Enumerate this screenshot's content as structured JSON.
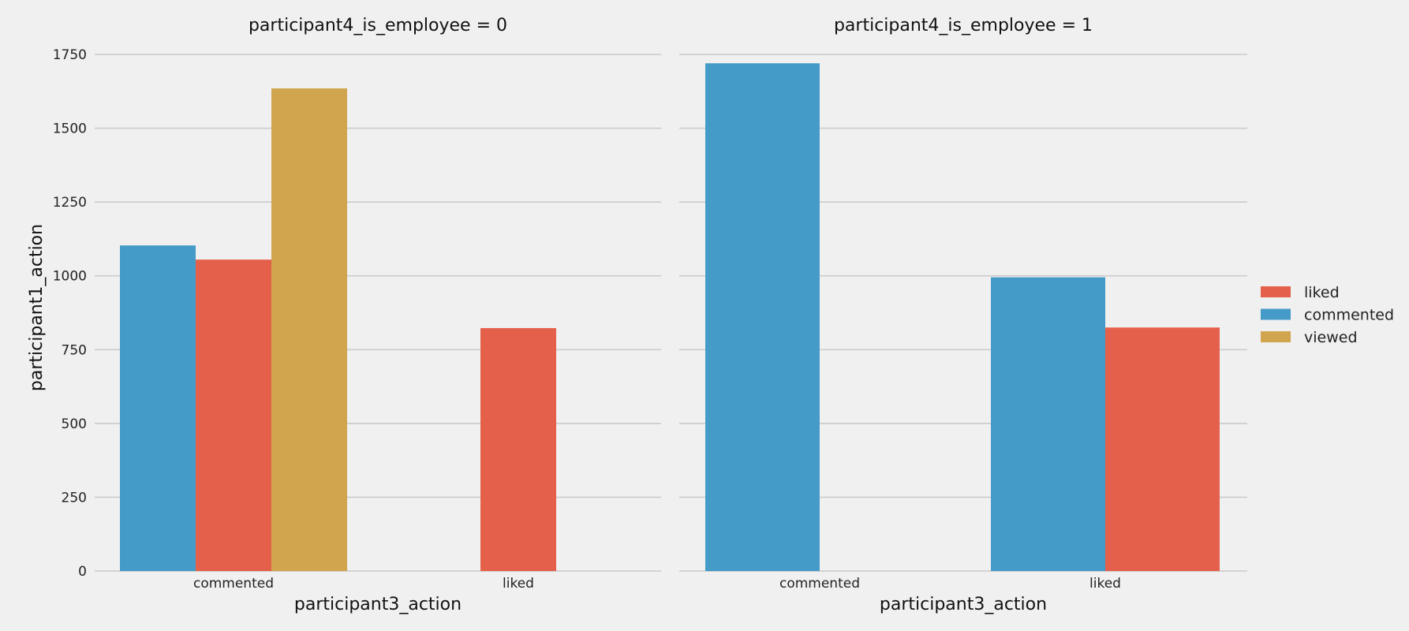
{
  "chart_data": {
    "type": "bar",
    "y_label": "participant1_action",
    "x_label": "participant3_action",
    "y_ticks": [
      0,
      250,
      500,
      750,
      1000,
      1250,
      1500,
      1750
    ],
    "ylim": [
      0,
      1800
    ],
    "legend_position": "right",
    "hues": [
      "liked",
      "commented",
      "viewed"
    ],
    "colors": {
      "liked": "#e5604a",
      "commented": "#459bc8",
      "viewed": "#d0a54d"
    },
    "panels": [
      {
        "title": "participant4_is_employee = 0",
        "categories": [
          "commented",
          "liked"
        ],
        "bars": [
          {
            "category": "commented",
            "hue": "commented",
            "value": 1103
          },
          {
            "category": "commented",
            "hue": "liked",
            "value": 1055
          },
          {
            "category": "commented",
            "hue": "viewed",
            "value": 1635
          },
          {
            "category": "liked",
            "hue": "liked",
            "value": 823
          }
        ]
      },
      {
        "title": "participant4_is_employee = 1",
        "categories": [
          "commented",
          "liked"
        ],
        "bars": [
          {
            "category": "commented",
            "hue": "commented",
            "value": 1720
          },
          {
            "category": "liked",
            "hue": "commented",
            "value": 995
          },
          {
            "category": "liked",
            "hue": "liked",
            "value": 825
          }
        ]
      }
    ]
  }
}
